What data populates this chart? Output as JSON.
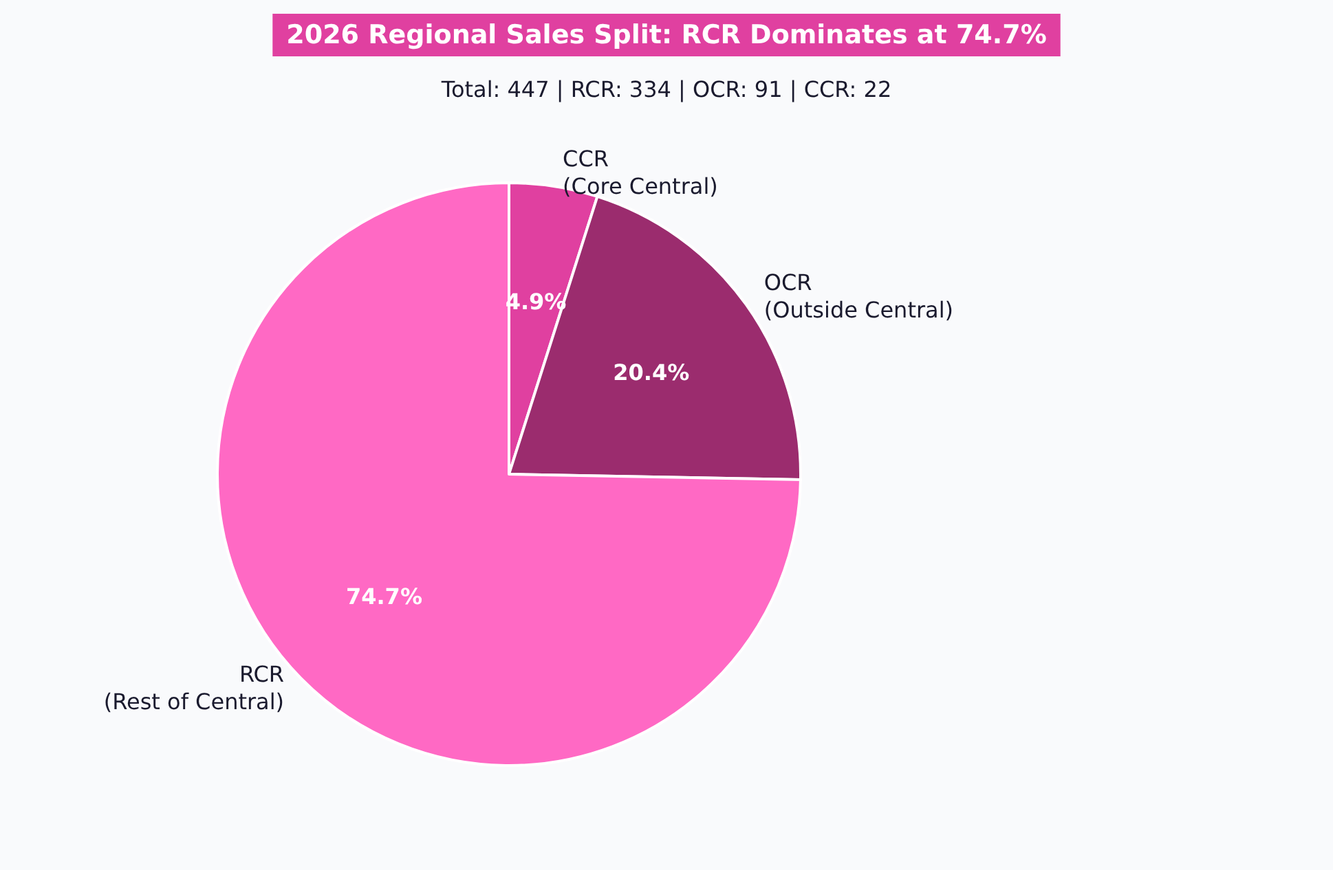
{
  "chart_data": {
    "type": "pie",
    "title": "2026 Regional Sales Split: RCR Dominates at 74.7%",
    "subtitle": "Total: 447 | RCR: 334 | OCR: 91 | CCR: 22",
    "categories": [
      "CCR\n(Core Central)",
      "OCR\n(Outside Central)",
      "RCR\n(Rest of Central)"
    ],
    "values": [
      4.9,
      20.4,
      74.7
    ],
    "value_labels": [
      "4.9%",
      "20.4%",
      "74.7%"
    ],
    "colors": [
      "#e040a0",
      "#9b2c6e",
      "#ff69c4"
    ],
    "legend": false
  }
}
